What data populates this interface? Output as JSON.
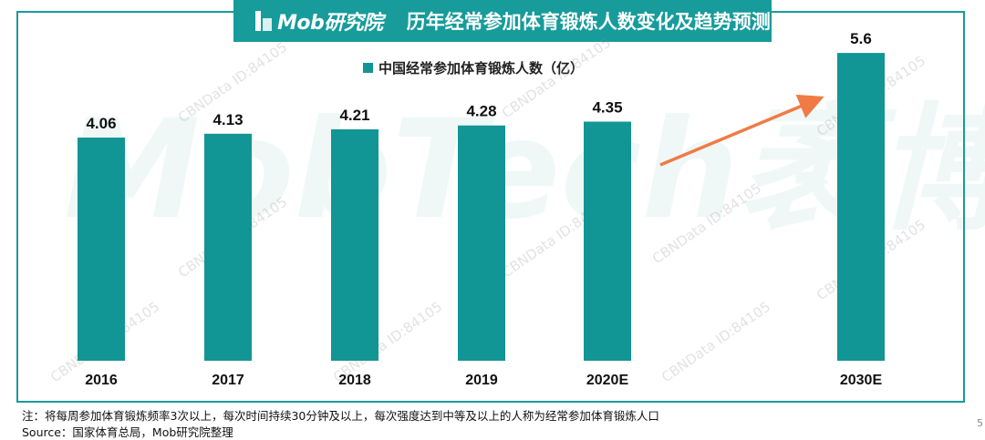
{
  "title_bar": {
    "logo_text": "Mob研究院",
    "title": "历年经常参加体育锻炼人数变化及趋势预测"
  },
  "watermark": {
    "brand": "MobTech袤博",
    "id_text": "CBNData ID:84105"
  },
  "chart_data": {
    "type": "bar",
    "title": "",
    "legend": [
      "中国经常参加体育锻炼人数（亿）"
    ],
    "legend_position": "top-center",
    "categories": [
      "2016",
      "2017",
      "2018",
      "2019",
      "2020E",
      "2030E"
    ],
    "series": [
      {
        "name": "中国经常参加体育锻炼人数（亿）",
        "values": [
          4.06,
          4.13,
          4.21,
          4.28,
          4.35,
          5.6
        ],
        "labels": [
          "4.06",
          "4.13",
          "4.21",
          "4.28",
          "4.35",
          "5.6"
        ]
      }
    ],
    "ylim": [
      0,
      5.9
    ],
    "grid": false,
    "annotation": "trend-arrow-2020E-to-2030E",
    "colors": {
      "bar": "#129595",
      "arrow": "#f07b45"
    }
  },
  "footer": {
    "note": "注：将每周参加体育锻炼频率3次以上，每次时间持续30分钟及以上，每次强度达到中等及以上的人称为经常参加体育锻炼人口",
    "source": "Source：国家体育总局，Mob研究院整理",
    "page_number": "5"
  }
}
